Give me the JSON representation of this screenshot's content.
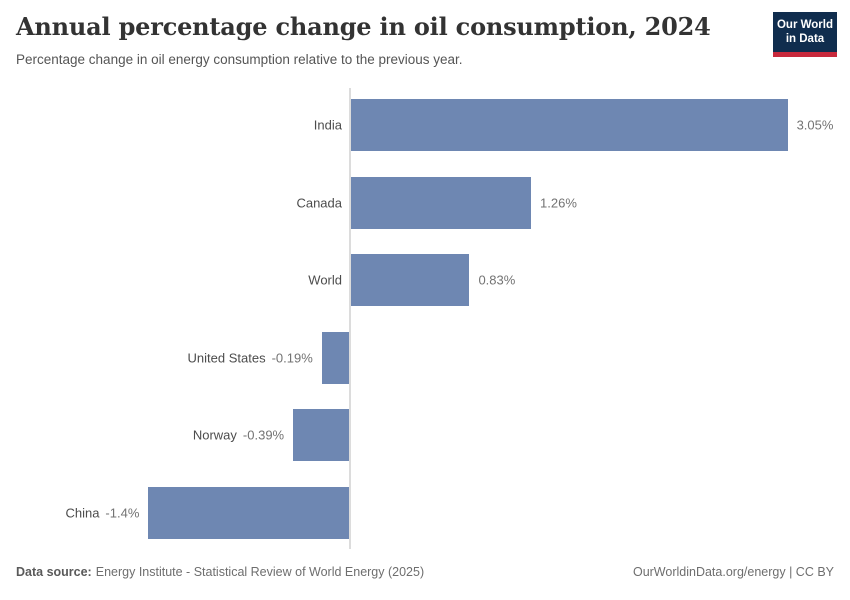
{
  "header": {
    "title": "Annual percentage change in oil consumption, 2024",
    "subtitle": "Percentage change in oil energy consumption relative to the previous year.",
    "logo": {
      "line1": "Our World",
      "line2": "in Data",
      "bg_color": "#102d4e",
      "accent_color": "#c8293c"
    }
  },
  "chart_data": {
    "type": "bar",
    "orientation": "horizontal",
    "title": "Annual percentage change in oil consumption, 2024",
    "xlabel": "",
    "ylabel": "",
    "categories": [
      "India",
      "Canada",
      "World",
      "United States",
      "Norway",
      "China"
    ],
    "values": [
      3.05,
      1.26,
      0.83,
      -0.19,
      -0.39,
      -1.4
    ],
    "value_labels": [
      "3.05%",
      "1.26%",
      "0.83%",
      "-0.19%",
      "-0.39%",
      "-1.4%"
    ],
    "unit": "%",
    "xlim": [
      -1.4,
      3.05
    ],
    "grid": false,
    "legend": "none",
    "bar_color": "#6e87b2",
    "axis_color": "#dcdcdc"
  },
  "footer": {
    "source_label": "Data source:",
    "source_text": "Energy Institute - Statistical Review of World Energy (2025)",
    "right_url": "OurWorldinData.org/energy",
    "right_license": "| CC BY"
  }
}
